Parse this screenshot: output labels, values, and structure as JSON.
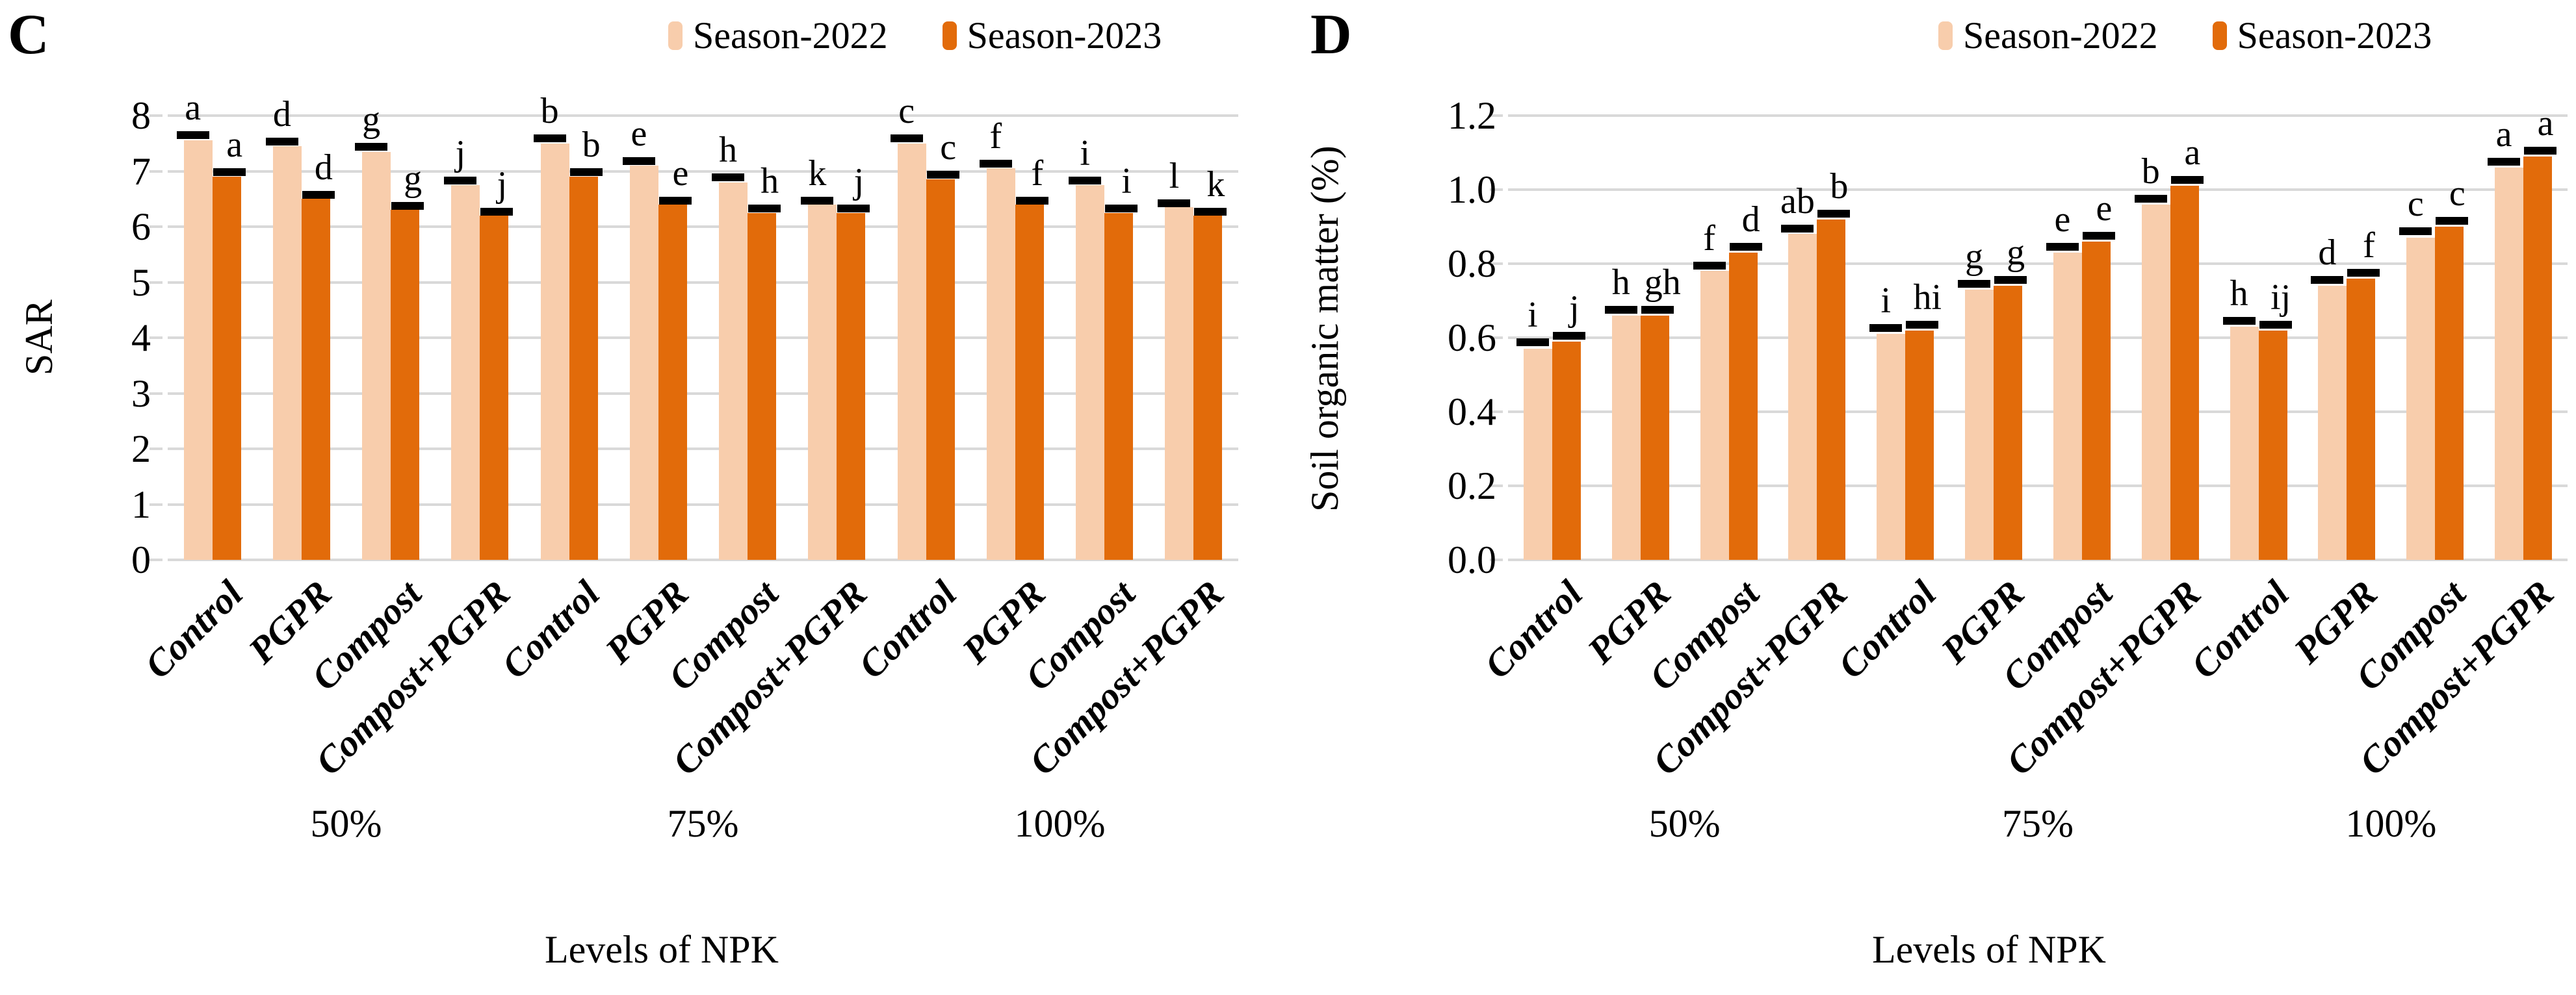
{
  "colors": {
    "season_2022": "#F8CDAC",
    "season_2023": "#E26B0A",
    "gridline": "#D9D9D9",
    "error_cap": "#000000",
    "text": "#000000"
  },
  "chart_data": [
    {
      "panel_label": "C",
      "type": "bar",
      "title": "",
      "ylabel": "SAR",
      "xlabel": "Levels of NPK",
      "ylim": [
        0,
        8
      ],
      "ytick_labels": [
        "0",
        "1",
        "2",
        "3",
        "4",
        "5",
        "6",
        "7",
        "8"
      ],
      "grid": true,
      "legend_position": "top",
      "categories": [
        "Control",
        "PGPR",
        "Compost",
        "Compost+PGPR",
        "Control",
        "PGPR",
        "Compost",
        "Compost+PGPR",
        "Control",
        "PGPR",
        "Compost",
        "Compost+PGPR"
      ],
      "group_labels": [
        "50%",
        "75%",
        "100%"
      ],
      "series": [
        {
          "name": "Season-2022",
          "color": "#F8CDAC",
          "values": [
            7.55,
            7.45,
            7.35,
            6.75,
            7.5,
            7.1,
            6.8,
            6.4,
            7.5,
            7.05,
            6.75,
            6.35
          ],
          "sig_letters": [
            "a",
            "d",
            "g",
            "j",
            "b",
            "e",
            "h",
            "k",
            "c",
            "f",
            "i",
            "l"
          ],
          "errors": [
            0.07,
            0.06,
            0.06,
            0.06,
            0.07,
            0.06,
            0.06,
            0.05,
            0.07,
            0.06,
            0.06,
            0.05
          ]
        },
        {
          "name": "Season-2023",
          "color": "#E26B0A",
          "values": [
            6.9,
            6.5,
            6.3,
            6.2,
            6.9,
            6.4,
            6.25,
            6.25,
            6.85,
            6.4,
            6.25,
            6.2
          ],
          "sig_letters": [
            "a",
            "d",
            "g",
            "j",
            "b",
            "e",
            "h",
            "j",
            "c",
            "f",
            "i",
            "k"
          ],
          "errors": [
            0.06,
            0.05,
            0.05,
            0.05,
            0.06,
            0.05,
            0.05,
            0.05,
            0.06,
            0.05,
            0.05,
            0.05
          ]
        }
      ]
    },
    {
      "panel_label": "D",
      "type": "bar",
      "title": "",
      "ylabel": "Soil organic matter (%)",
      "xlabel": "Levels of NPK",
      "ylim": [
        0,
        1.2
      ],
      "ytick_labels": [
        "0.0",
        "0.2",
        "0.4",
        "0.6",
        "0.8",
        "1.0",
        "1.2"
      ],
      "grid": true,
      "legend_position": "top",
      "categories": [
        "Control",
        "PGPR",
        "Compost",
        "Compost+PGPR",
        "Control",
        "PGPR",
        "Compost",
        "Compost+PGPR",
        "Control",
        "PGPR",
        "Compost",
        "Compost+PGPR"
      ],
      "group_labels": [
        "50%",
        "75%",
        "100%"
      ],
      "series": [
        {
          "name": "Season-2022",
          "color": "#F8CDAC",
          "values": [
            0.57,
            0.66,
            0.78,
            0.88,
            0.61,
            0.73,
            0.83,
            0.96,
            0.63,
            0.74,
            0.87,
            1.06
          ],
          "sig_letters": [
            "i",
            "h",
            "f",
            "ab",
            "i",
            "g",
            "e",
            "b",
            "h",
            "d",
            "c",
            "a"
          ],
          "errors": [
            0.015,
            0.012,
            0.012,
            0.012,
            0.012,
            0.012,
            0.012,
            0.012,
            0.012,
            0.012,
            0.015,
            0.012
          ]
        },
        {
          "name": "Season-2023",
          "color": "#E26B0A",
          "values": [
            0.59,
            0.66,
            0.83,
            0.92,
            0.62,
            0.74,
            0.86,
            1.01,
            0.62,
            0.76,
            0.9,
            1.09
          ],
          "sig_letters": [
            "j",
            "gh",
            "d",
            "b",
            "hi",
            "g",
            "e",
            "a",
            "ij",
            "f",
            "c",
            "a"
          ],
          "errors": [
            0.012,
            0.012,
            0.012,
            0.012,
            0.012,
            0.012,
            0.012,
            0.012,
            0.012,
            0.012,
            0.012,
            0.012
          ]
        }
      ]
    }
  ]
}
